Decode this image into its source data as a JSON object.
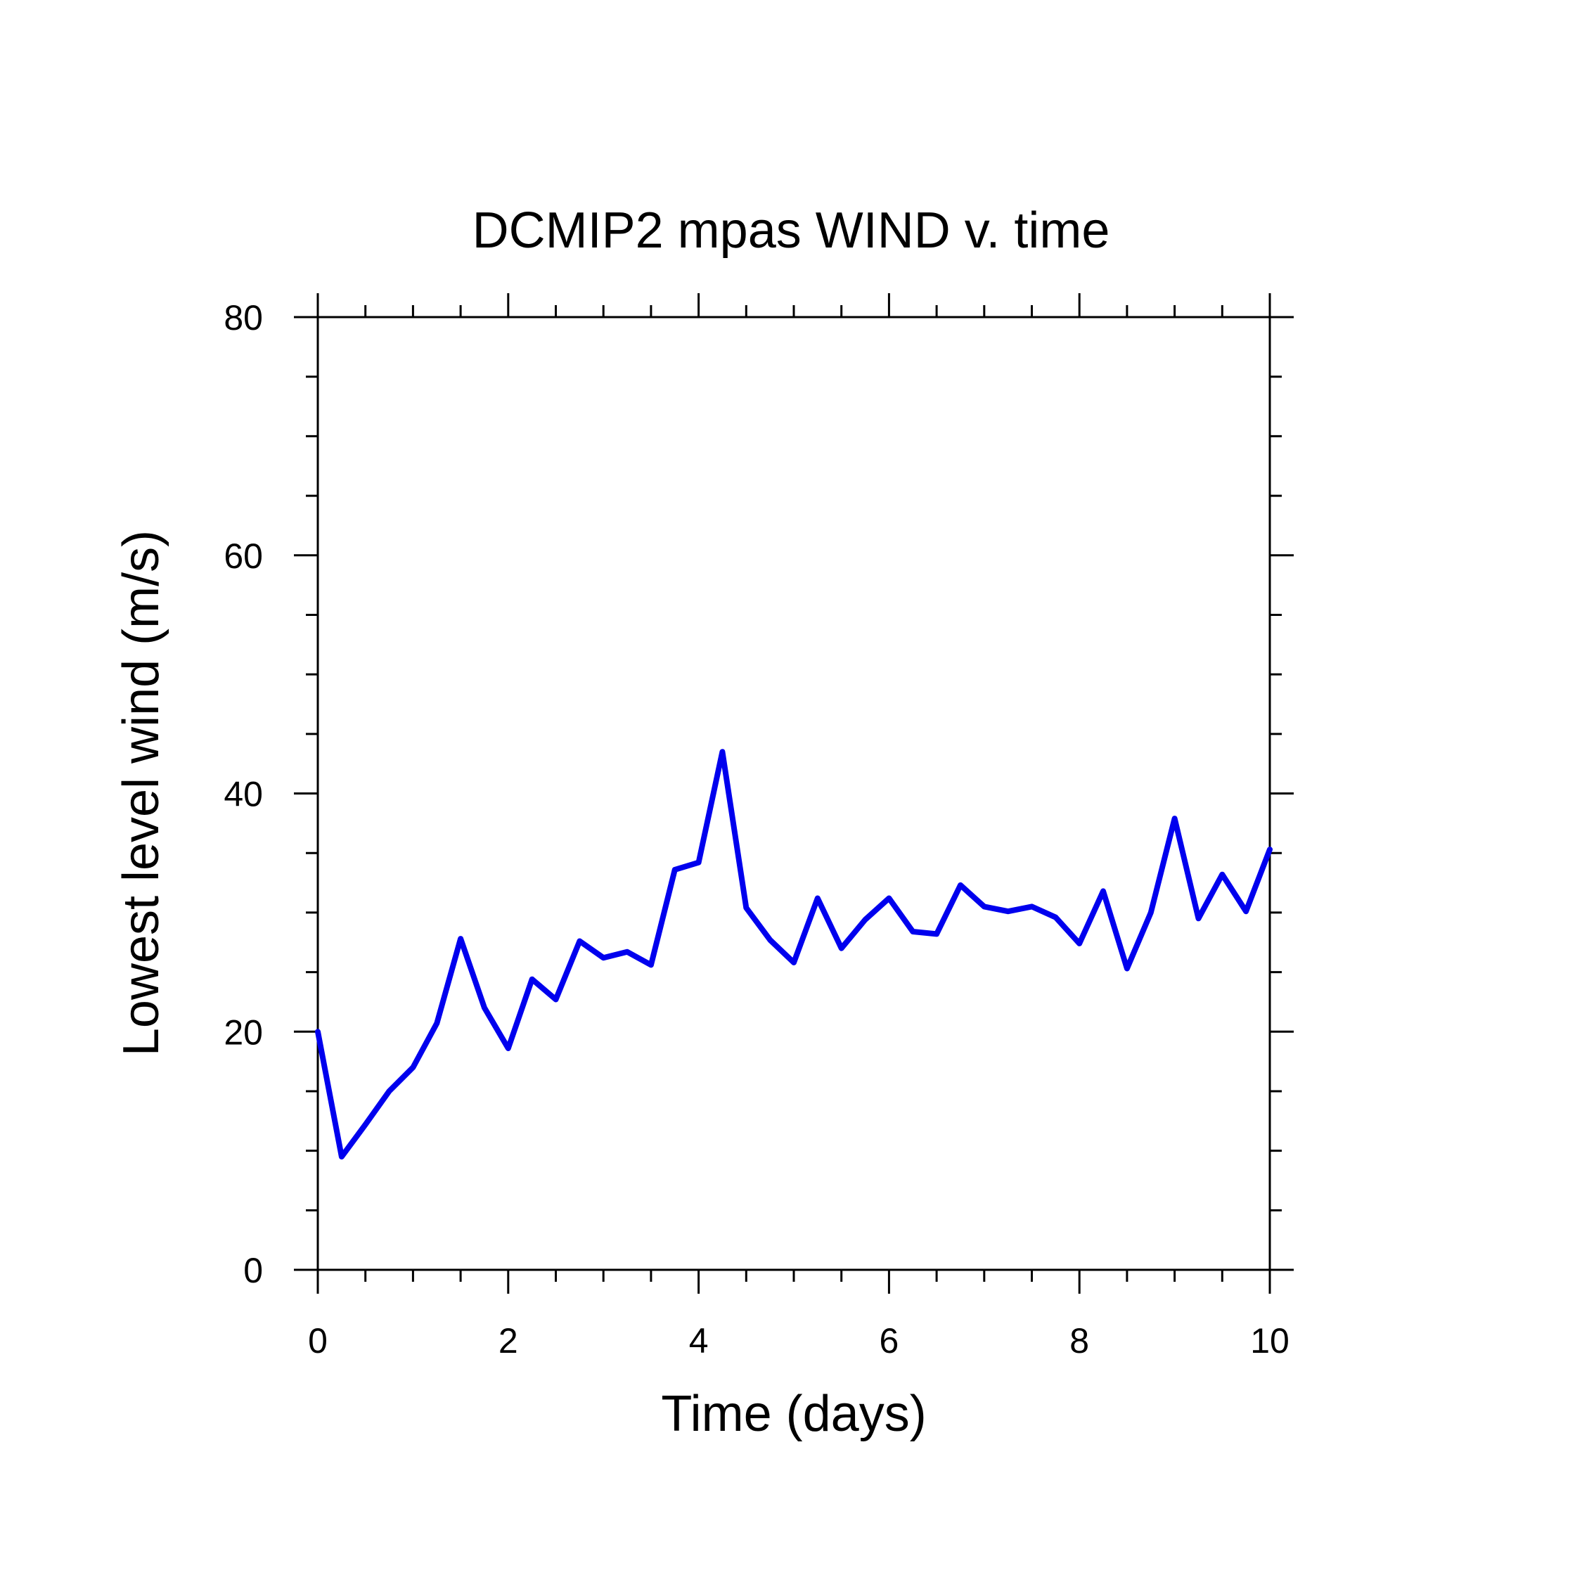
{
  "chart_data": {
    "type": "line",
    "title": "DCMIP2 mpas WIND v. time",
    "xlabel": "Time (days)",
    "ylabel": "Lowest level wind (m/s)",
    "xlim": [
      0,
      10
    ],
    "ylim": [
      0,
      80
    ],
    "x_ticks": [
      0,
      2,
      4,
      6,
      8,
      10
    ],
    "y_ticks": [
      0,
      20,
      40,
      60,
      80
    ],
    "x_tick_labels": [
      "0",
      "2",
      "4",
      "6",
      "8",
      "10"
    ],
    "y_tick_labels": [
      "0",
      "20",
      "40",
      "60",
      "80"
    ],
    "grid": false,
    "series": [
      {
        "color": "#0000ee",
        "x": [
          0,
          0.25,
          0.5,
          0.75,
          1.0,
          1.25,
          1.5,
          1.75,
          2.0,
          2.25,
          2.5,
          2.75,
          3.0,
          3.25,
          3.5,
          3.75,
          4.0,
          4.25,
          4.5,
          4.75,
          5.0,
          5.25,
          5.5,
          5.75,
          6.0,
          6.25,
          6.5,
          6.75,
          7.0,
          7.25,
          7.5,
          7.75,
          8.0,
          8.25,
          8.5,
          8.75,
          9.0,
          9.25,
          9.5,
          9.75,
          10.0
        ],
        "y": [
          20.0,
          9.5,
          12.2,
          15.0,
          17.0,
          20.7,
          27.8,
          22.0,
          18.6,
          24.4,
          22.7,
          27.6,
          26.2,
          26.7,
          25.6,
          33.6,
          34.2,
          43.5,
          30.4,
          27.7,
          25.8,
          31.2,
          27.0,
          29.4,
          31.2,
          28.4,
          28.2,
          32.3,
          30.5,
          30.1,
          30.5,
          29.6,
          27.4,
          31.8,
          25.3,
          30.0,
          37.9,
          29.5,
          33.2,
          30.1,
          35.3
        ]
      }
    ]
  }
}
